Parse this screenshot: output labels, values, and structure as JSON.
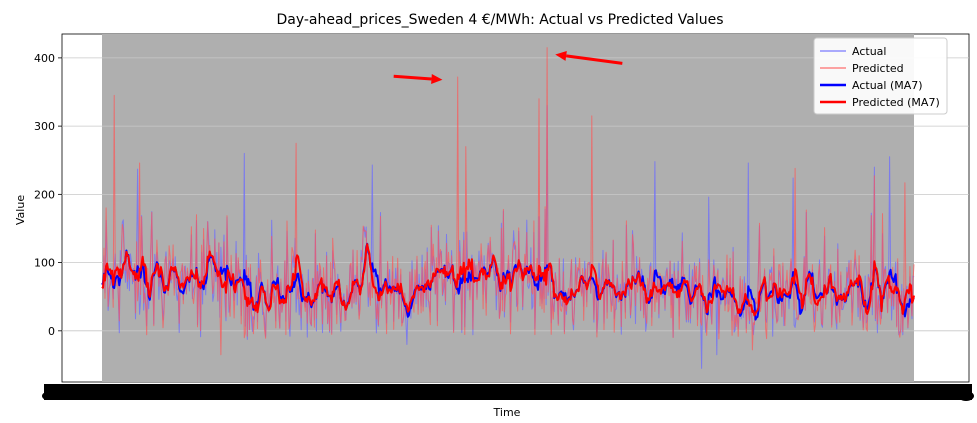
{
  "chart_data": {
    "type": "line",
    "title": "Day-ahead_prices_Sweden 4 €/MWh: Actual vs Predicted Values",
    "xlabel": "Time",
    "ylabel": "Value",
    "ylim": [
      -75,
      435
    ],
    "yticks": [
      0,
      100,
      200,
      300,
      400
    ],
    "grid": "y",
    "legend_position": "top-right",
    "n_points": 800,
    "series": [
      {
        "name": "Actual",
        "color": "#6b6bff",
        "opacity": 0.75,
        "width": 1,
        "style": "raw",
        "peaks": [
          {
            "index": 35,
            "value": 237
          },
          {
            "index": 140,
            "value": 260
          },
          {
            "index": 266,
            "value": 243
          },
          {
            "index": 438,
            "value": 330
          },
          {
            "index": 544,
            "value": 248
          },
          {
            "index": 597,
            "value": 196
          },
          {
            "index": 636,
            "value": 246
          },
          {
            "index": 680,
            "value": 224
          },
          {
            "index": 760,
            "value": 240
          },
          {
            "index": 775,
            "value": 255
          }
        ],
        "dips": [
          {
            "index": 590,
            "value": -55
          },
          {
            "index": 605,
            "value": -35
          },
          {
            "index": 300,
            "value": -20
          }
        ]
      },
      {
        "name": "Predicted",
        "color": "#ff5555",
        "opacity": 0.7,
        "width": 1,
        "style": "raw",
        "peaks": [
          {
            "index": 12,
            "value": 345
          },
          {
            "index": 37,
            "value": 246
          },
          {
            "index": 191,
            "value": 275
          },
          {
            "index": 350,
            "value": 372
          },
          {
            "index": 358,
            "value": 270
          },
          {
            "index": 430,
            "value": 340
          },
          {
            "index": 438,
            "value": 415
          },
          {
            "index": 482,
            "value": 315
          },
          {
            "index": 682,
            "value": 238
          },
          {
            "index": 760,
            "value": 227
          },
          {
            "index": 790,
            "value": 217
          }
        ],
        "dips": [
          {
            "index": 117,
            "value": -35
          },
          {
            "index": 640,
            "value": -28
          }
        ]
      },
      {
        "name": "Actual (MA7)",
        "color": "#0000ff",
        "opacity": 1,
        "width": 2,
        "style": "smooth"
      },
      {
        "name": "Predicted (MA7)",
        "color": "#ff0000",
        "opacity": 1,
        "width": 2,
        "style": "smooth"
      }
    ],
    "annotations": [
      {
        "type": "arrow",
        "color": "#ff0000",
        "from_index": 287,
        "from_value": 373,
        "to_index": 335,
        "to_value": 368
      },
      {
        "type": "arrow",
        "color": "#ff0000",
        "from_index": 512,
        "from_value": 392,
        "to_index": 446,
        "to_value": 405
      }
    ]
  }
}
